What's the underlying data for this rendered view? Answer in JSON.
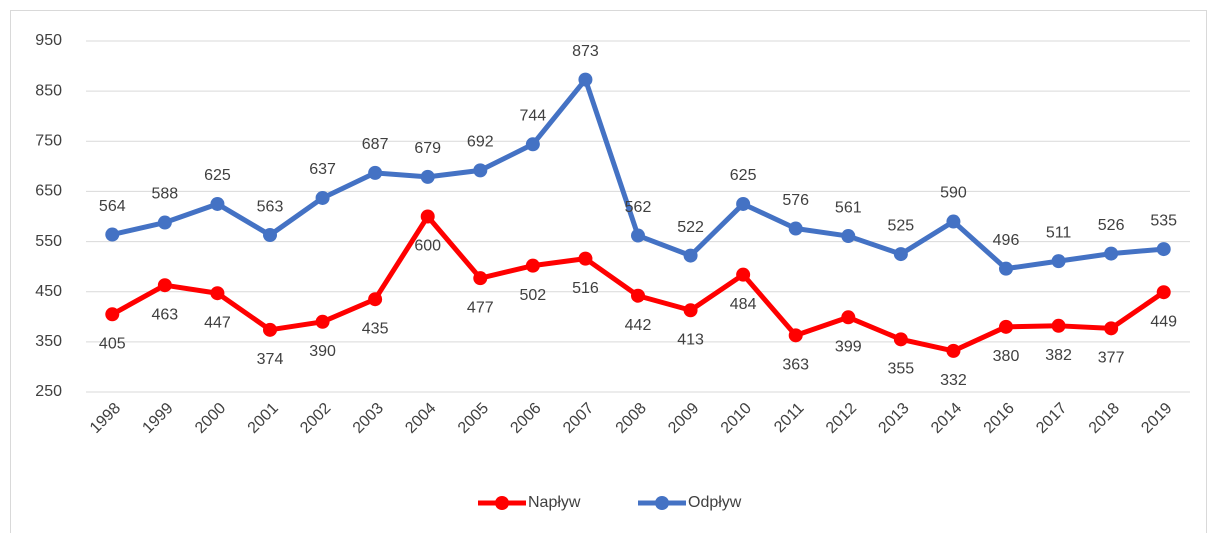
{
  "chart_data": {
    "type": "line",
    "categories": [
      "1998",
      "1999",
      "2000",
      "2001",
      "2002",
      "2003",
      "2004",
      "2005",
      "2006",
      "2007",
      "2008",
      "2009",
      "2010",
      "2011",
      "2012",
      "2013",
      "2014",
      "2016",
      "2017",
      "2018",
      "2019"
    ],
    "series": [
      {
        "name": "Napływ",
        "color": "#ff0000",
        "values": [
          405,
          463,
          447,
          374,
          390,
          435,
          600,
          477,
          502,
          516,
          442,
          413,
          484,
          363,
          399,
          355,
          332,
          380,
          382,
          377,
          449
        ]
      },
      {
        "name": "Odpływ",
        "color": "#4472c4",
        "values": [
          564,
          588,
          625,
          563,
          637,
          687,
          679,
          692,
          744,
          873,
          562,
          522,
          625,
          576,
          561,
          525,
          590,
          496,
          511,
          526,
          535
        ]
      }
    ],
    "ylim": [
      250,
      950
    ],
    "yticks": [
      250,
      350,
      450,
      550,
      650,
      750,
      850,
      950
    ],
    "grid": true,
    "legend": "bottom"
  }
}
